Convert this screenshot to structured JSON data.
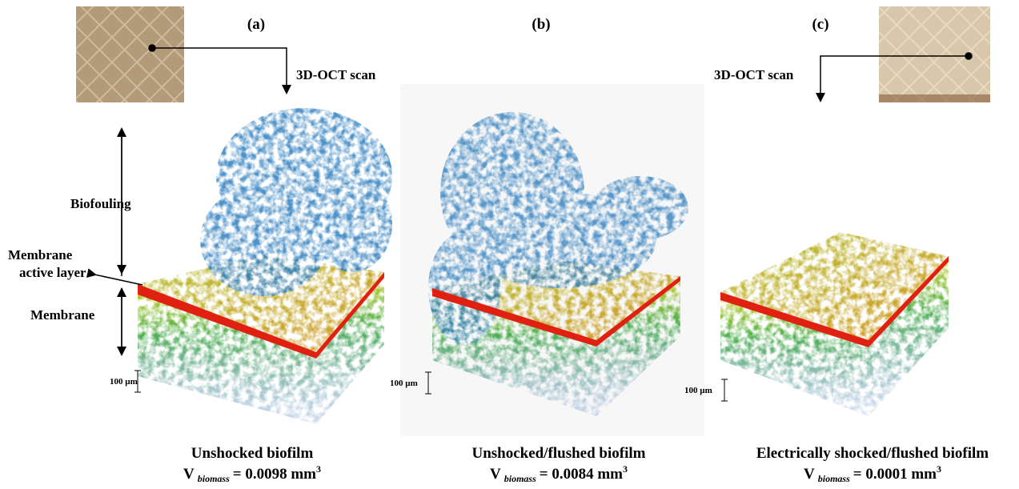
{
  "panels": [
    {
      "label": "(a)",
      "scan": "3D-OCT scan",
      "caption": "Unshocked biofilm",
      "volume": {
        "symbol": "V",
        "subscript": "biomass",
        "value": "= 0.0098 mm",
        "superscript": "3"
      },
      "scale": "100 µm"
    },
    {
      "label": "(b)",
      "caption": "Unshocked/flushed biofilm",
      "volume": {
        "symbol": "V",
        "subscript": "biomass",
        "value": "= 0.0084 mm",
        "superscript": "3"
      },
      "scale": "100 µm"
    },
    {
      "label": "(c)",
      "scan": "3D-OCT scan",
      "caption": "Electrically shocked/flushed biofilm",
      "volume": {
        "symbol": "V",
        "subscript": "biomass",
        "value": "= 0.0001 mm",
        "superscript": "3"
      },
      "scale": "100 µm"
    }
  ],
  "annotations": {
    "biofouling": "Biofouling",
    "active_layer": [
      "Membrane",
      "active layer"
    ],
    "membrane": "Membrane"
  }
}
